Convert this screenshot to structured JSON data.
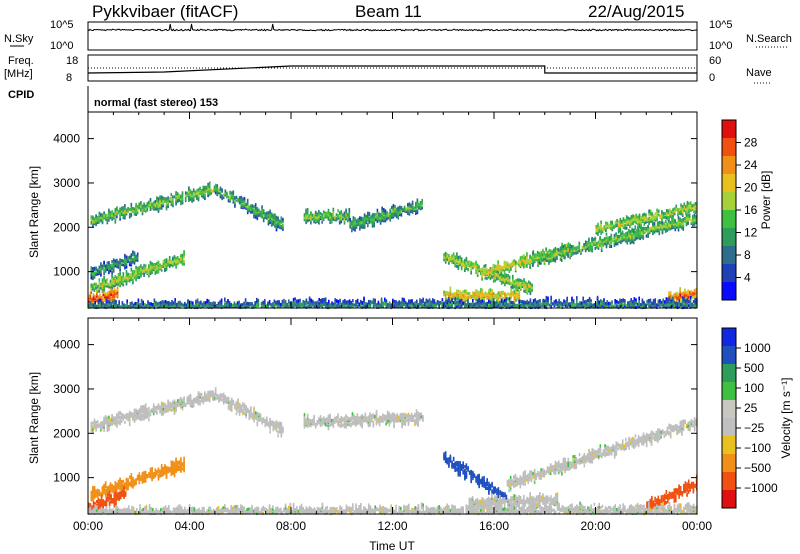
{
  "header": {
    "station": "Pykkvibaer (fitACF)",
    "beam": "Beam 11",
    "date": "22/Aug/2015"
  },
  "noise_panel": {
    "left_label": "N.Sky",
    "left_ticks": [
      "10^5",
      "10^0"
    ],
    "right_label": "N.Search",
    "right_ticks": [
      "10^5",
      "10^0"
    ]
  },
  "freq_panel": {
    "left_label_top": "Freq.",
    "left_label_unit": "[MHz]",
    "left_ticks": [
      "18",
      "8"
    ],
    "right_label": "Nave",
    "right_ticks": [
      "60",
      "0"
    ]
  },
  "cpid_panel": {
    "label": "CPID",
    "text": "normal (fast stereo) 153"
  },
  "colors": {
    "power": [
      "#0a0aff",
      "#2040b8",
      "#2e6e8c",
      "#2e9c5a",
      "#40c040",
      "#a8d038",
      "#e8c020",
      "#f09018",
      "#f05010",
      "#e01010"
    ],
    "velocity": [
      "#e01010",
      "#f05010",
      "#f09018",
      "#e8c020",
      "#c0c0c0",
      "#c8c8c0",
      "#40c040",
      "#2e9c5a",
      "#2050c0",
      "#1028e0"
    ],
    "ground_scatter": "#bebebe"
  },
  "chart_data": [
    {
      "type": "heatmap",
      "name": "power",
      "ylabel": "Slant Range [km]",
      "y_ticks": [
        "1000",
        "2000",
        "3000",
        "4000"
      ],
      "ylim": [
        180,
        4600
      ],
      "colorbar": {
        "label": "Power [dB]",
        "ticks": [
          "4",
          "8",
          "12",
          "16",
          "20",
          "24",
          "28"
        ],
        "range": [
          0,
          32
        ]
      },
      "x_ticks": [
        "00:00",
        "04:00",
        "08:00",
        "12:00",
        "16:00",
        "20:00",
        "00:00"
      ],
      "xlabel": "",
      "features": [
        {
          "kind": "band",
          "x0": 0.1,
          "x1": 5.0,
          "y0": 2200,
          "y1": 2900,
          "level": 14
        },
        {
          "kind": "band",
          "x0": 5.0,
          "x1": 7.7,
          "y0": 2900,
          "y1": 2100,
          "level": 12
        },
        {
          "kind": "band",
          "x0": 8.5,
          "x1": 10.3,
          "y0": 2300,
          "y1": 2300,
          "level": 14
        },
        {
          "kind": "band",
          "x0": 10.3,
          "x1": 13.2,
          "y0": 2100,
          "y1": 2550,
          "level": 12
        },
        {
          "kind": "band",
          "x0": 0.1,
          "x1": 3.8,
          "y0": 650,
          "y1": 1350,
          "level": 16
        },
        {
          "kind": "band",
          "x0": 0.1,
          "x1": 2.0,
          "y0": 1000,
          "y1": 1400,
          "level": 10
        },
        {
          "kind": "band",
          "x0": 14.0,
          "x1": 17.5,
          "y0": 1400,
          "y1": 650,
          "level": 16
        },
        {
          "kind": "band",
          "x0": 15.5,
          "x1": 19.0,
          "y0": 1000,
          "y1": 1550,
          "level": 18
        },
        {
          "kind": "band",
          "x0": 17.5,
          "x1": 24.0,
          "y0": 1300,
          "y1": 2250,
          "level": 14
        },
        {
          "kind": "band",
          "x0": 20.0,
          "x1": 24.0,
          "y0": 2000,
          "y1": 2500,
          "level": 16
        },
        {
          "kind": "band",
          "x0": 14.0,
          "x1": 17.0,
          "y0": 500,
          "y1": 500,
          "level": 20
        },
        {
          "kind": "band",
          "x0": 0.0,
          "x1": 1.2,
          "y0": 400,
          "y1": 550,
          "level": 26
        },
        {
          "kind": "band",
          "x0": 22.8,
          "x1": 24.0,
          "y0": 450,
          "y1": 550,
          "level": 24
        },
        {
          "kind": "band",
          "x0": 0.0,
          "x1": 24.0,
          "y0": 260,
          "y1": 300,
          "level": 8
        }
      ]
    },
    {
      "type": "heatmap",
      "name": "velocity",
      "ylabel": "Slant Range [km]",
      "y_ticks": [
        "1000",
        "2000",
        "3000",
        "4000"
      ],
      "ylim": [
        180,
        4600
      ],
      "colorbar": {
        "label": "Velocity [m s⁻¹]",
        "ticks": [
          "1000",
          "500",
          "100",
          "25",
          "−25",
          "−100",
          "−500",
          "−1000"
        ]
      },
      "x_ticks": [
        "00:00",
        "04:00",
        "08:00",
        "12:00",
        "16:00",
        "20:00",
        "00:00"
      ],
      "xlabel": "Time UT",
      "features": [
        {
          "kind": "band",
          "x0": 0.1,
          "x1": 5.0,
          "y0": 2200,
          "y1": 2900,
          "level": "ground"
        },
        {
          "kind": "band",
          "x0": 5.0,
          "x1": 7.7,
          "y0": 2900,
          "y1": 2100,
          "level": "ground"
        },
        {
          "kind": "band",
          "x0": 8.5,
          "x1": 13.2,
          "y0": 2300,
          "y1": 2400,
          "level": "ground"
        },
        {
          "kind": "band",
          "x0": 0.1,
          "x1": 3.8,
          "y0": 650,
          "y1": 1350,
          "level": -100
        },
        {
          "kind": "band",
          "x0": 14.0,
          "x1": 16.5,
          "y0": 1500,
          "y1": 600,
          "level": 500
        },
        {
          "kind": "band",
          "x0": 16.5,
          "x1": 24.0,
          "y0": 900,
          "y1": 2300,
          "level": "ground"
        },
        {
          "kind": "band",
          "x0": 15.0,
          "x1": 18.5,
          "y0": 450,
          "y1": 550,
          "level": "ground"
        },
        {
          "kind": "band",
          "x0": 0.0,
          "x1": 1.5,
          "y0": 350,
          "y1": 700,
          "level": -500
        },
        {
          "kind": "band",
          "x0": 22.0,
          "x1": 24.0,
          "y0": 400,
          "y1": 900,
          "level": -500
        },
        {
          "kind": "band",
          "x0": 0.0,
          "x1": 24.0,
          "y0": 250,
          "y1": 300,
          "level": "ground"
        }
      ]
    }
  ]
}
